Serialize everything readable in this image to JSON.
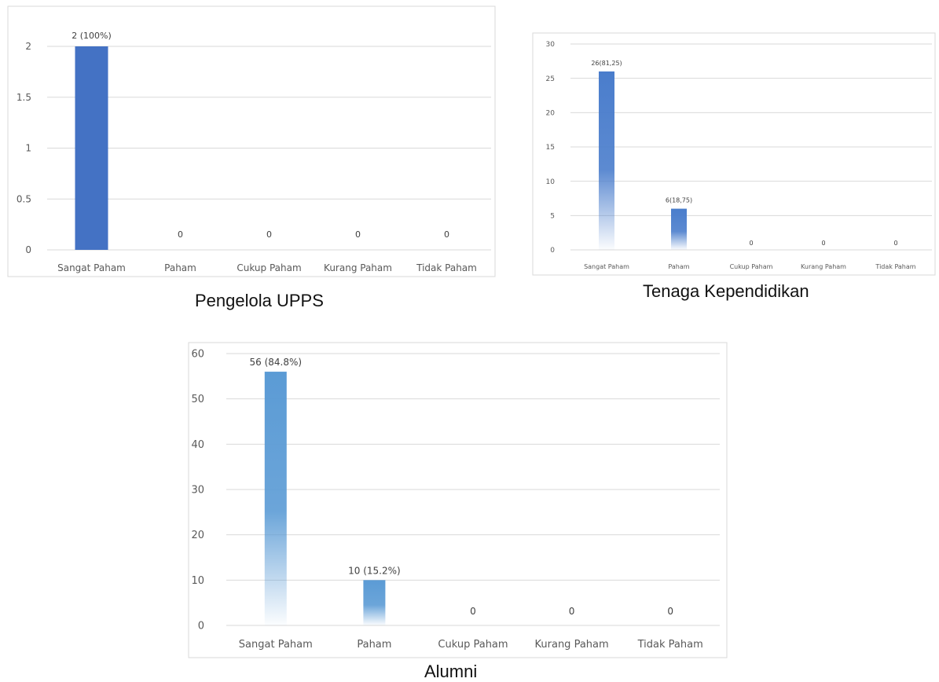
{
  "captions": {
    "upps": "Pengelola UPPS",
    "tendik": "Tenaga Kependidikan",
    "alumni": "Alumni"
  },
  "colors": {
    "solid_bar": "#4472c4",
    "gradient_bar": "#4a7dcc",
    "alumni_bar": "#5b9bd5",
    "gridline": "#d9d9d9",
    "frame": "#d9d9d9",
    "text": "#595959"
  },
  "chart_data": [
    {
      "id": "upps",
      "type": "bar",
      "title": "",
      "categories": [
        "Sangat Paham",
        "Paham",
        "Cukup Paham",
        "Kurang Paham",
        "Tidak Paham"
      ],
      "values": [
        2,
        0,
        0,
        0,
        0
      ],
      "data_labels": [
        "2 (100%)",
        "0",
        "0",
        "0",
        "0"
      ],
      "yticks": [
        "0",
        "0.5",
        "1",
        "1.5",
        "2"
      ],
      "ylim": [
        0,
        2
      ],
      "grid": true,
      "bar_fill": "solid"
    },
    {
      "id": "tendik",
      "type": "bar",
      "title": "",
      "categories": [
        "Sangat Paham",
        "Paham",
        "Cukup Paham",
        "Kurang Paham",
        "Tidak Paham"
      ],
      "values": [
        26,
        6,
        0,
        0,
        0
      ],
      "data_labels": [
        "26(81,25)",
        "6(18,75)",
        "0",
        "0",
        "0"
      ],
      "yticks": [
        "0",
        "5",
        "10",
        "15",
        "20",
        "25",
        "30"
      ],
      "ylim": [
        0,
        30
      ],
      "grid": true,
      "bar_fill": "gradient"
    },
    {
      "id": "alumni",
      "type": "bar",
      "title": "",
      "categories": [
        "Sangat Paham",
        "Paham",
        "Cukup Paham",
        "Kurang Paham",
        "Tidak Paham"
      ],
      "values": [
        56,
        10,
        0,
        0,
        0
      ],
      "data_labels": [
        "56 (84.8%)",
        "10 (15.2%)",
        "0",
        "0",
        "0"
      ],
      "yticks": [
        "0",
        "10",
        "20",
        "30",
        "40",
        "50",
        "60"
      ],
      "ylim": [
        0,
        60
      ],
      "grid": true,
      "bar_fill": "gradient"
    }
  ]
}
